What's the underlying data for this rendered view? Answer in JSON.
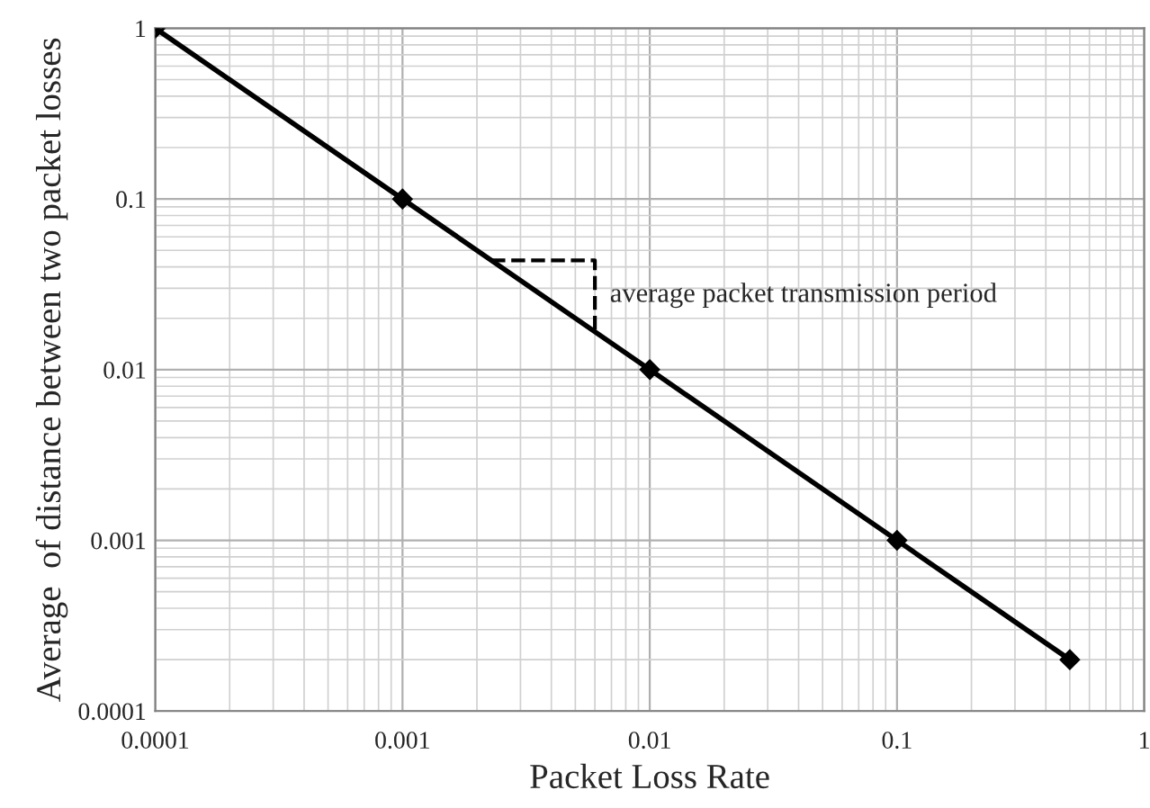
{
  "chart_data": {
    "type": "line",
    "xlabel": "Packet Loss Rate",
    "ylabel": "Average  of distance between two packet losses",
    "x": [
      0.0001,
      0.001,
      0.01,
      0.1,
      0.5
    ],
    "series": [
      {
        "color": "#000000",
        "values": [
          1,
          0.1,
          0.01,
          0.001,
          0.0002
        ]
      }
    ],
    "log": "xy",
    "xlim": [
      0.0001,
      1
    ],
    "ylim": [
      0.0001,
      1
    ],
    "xticks": [
      0.0001,
      0.001,
      0.01,
      0.1,
      1
    ],
    "yticks": [
      0.0001,
      0.001,
      0.01,
      0.1,
      1
    ],
    "grid": true,
    "marker": "diamond",
    "line_style": "solid",
    "annotations": [
      {
        "text": "average packet transmission period",
        "x": 0.006,
        "y": 0.017
      }
    ]
  }
}
